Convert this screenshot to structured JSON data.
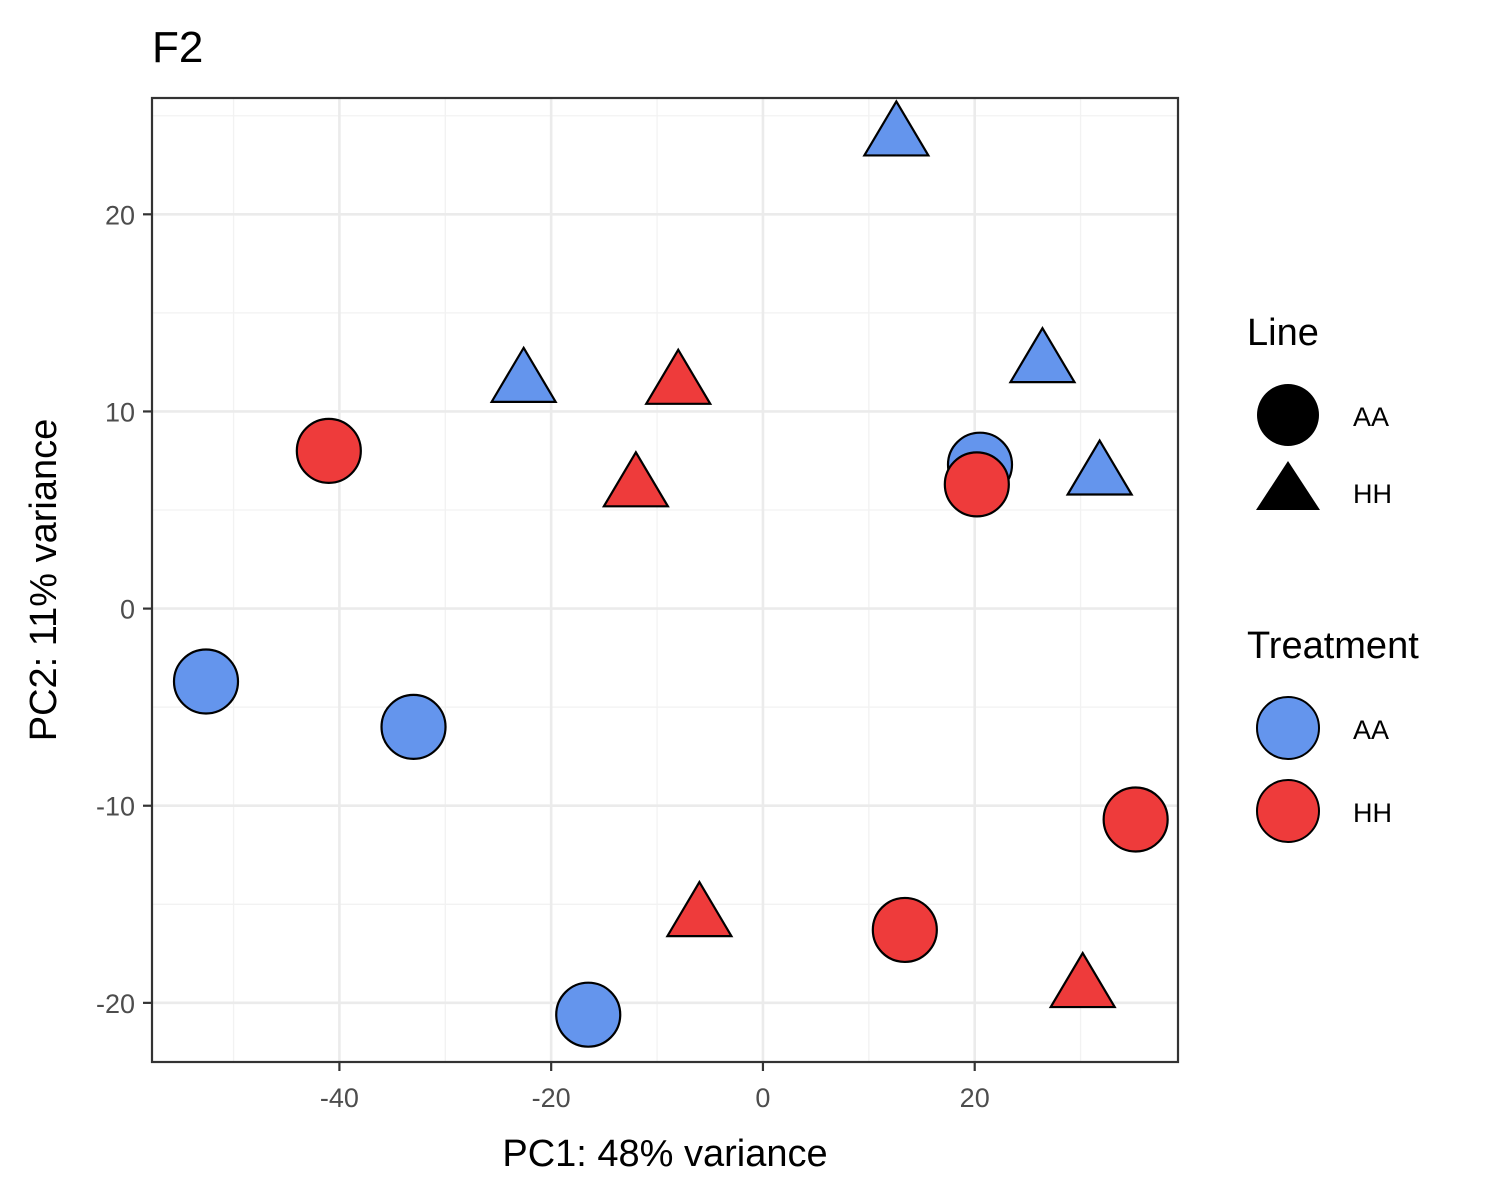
{
  "chart_data": {
    "type": "scatter",
    "title": "F2",
    "xlabel": "PC1: 48% variance",
    "ylabel": "PC2: 11% variance",
    "xlim": [
      -57.7,
      39.2
    ],
    "ylim": [
      -23.0,
      25.9
    ],
    "x_ticks": [
      -40,
      -20,
      0,
      20
    ],
    "y_ticks": [
      -20,
      -10,
      0,
      10,
      20
    ],
    "x_tick_labels": [
      "-40",
      "-20",
      "0",
      "20"
    ],
    "y_tick_labels": [
      "-20",
      "-10",
      "0",
      "10",
      "20"
    ],
    "grid": true,
    "legend_position": "right",
    "colors": {
      "AA": "#6495ED",
      "HH": "#EE3B3B"
    },
    "shape_legend": {
      "title": "Line",
      "entries": [
        {
          "label": "AA",
          "shape": "circle"
        },
        {
          "label": "HH",
          "shape": "triangle"
        }
      ]
    },
    "color_legend": {
      "title": "Treatment",
      "entries": [
        {
          "label": "AA",
          "color": "#6495ED"
        },
        {
          "label": "HH",
          "color": "#EE3B3B"
        }
      ]
    },
    "points": [
      {
        "x": -52.6,
        "y": -3.7,
        "line": "AA",
        "treatment": "AA"
      },
      {
        "x": -33.0,
        "y": -6.0,
        "line": "AA",
        "treatment": "AA"
      },
      {
        "x": -16.5,
        "y": -20.6,
        "line": "AA",
        "treatment": "AA"
      },
      {
        "x": 20.5,
        "y": 7.3,
        "line": "AA",
        "treatment": "AA"
      },
      {
        "x": -41.0,
        "y": 8.0,
        "line": "AA",
        "treatment": "HH"
      },
      {
        "x": 20.2,
        "y": 6.3,
        "line": "AA",
        "treatment": "HH"
      },
      {
        "x": 13.4,
        "y": -16.3,
        "line": "AA",
        "treatment": "HH"
      },
      {
        "x": 35.2,
        "y": -10.7,
        "line": "AA",
        "treatment": "HH"
      },
      {
        "x": -22.6,
        "y": 11.4,
        "line": "HH",
        "treatment": "AA"
      },
      {
        "x": 12.6,
        "y": 23.9,
        "line": "HH",
        "treatment": "AA"
      },
      {
        "x": 26.4,
        "y": 12.4,
        "line": "HH",
        "treatment": "AA"
      },
      {
        "x": 31.8,
        "y": 6.7,
        "line": "HH",
        "treatment": "AA"
      },
      {
        "x": -8.0,
        "y": 11.3,
        "line": "HH",
        "treatment": "HH"
      },
      {
        "x": -12.0,
        "y": 6.1,
        "line": "HH",
        "treatment": "HH"
      },
      {
        "x": -6.0,
        "y": -15.7,
        "line": "HH",
        "treatment": "HH"
      },
      {
        "x": 30.2,
        "y": -19.3,
        "line": "HH",
        "treatment": "HH"
      }
    ]
  }
}
